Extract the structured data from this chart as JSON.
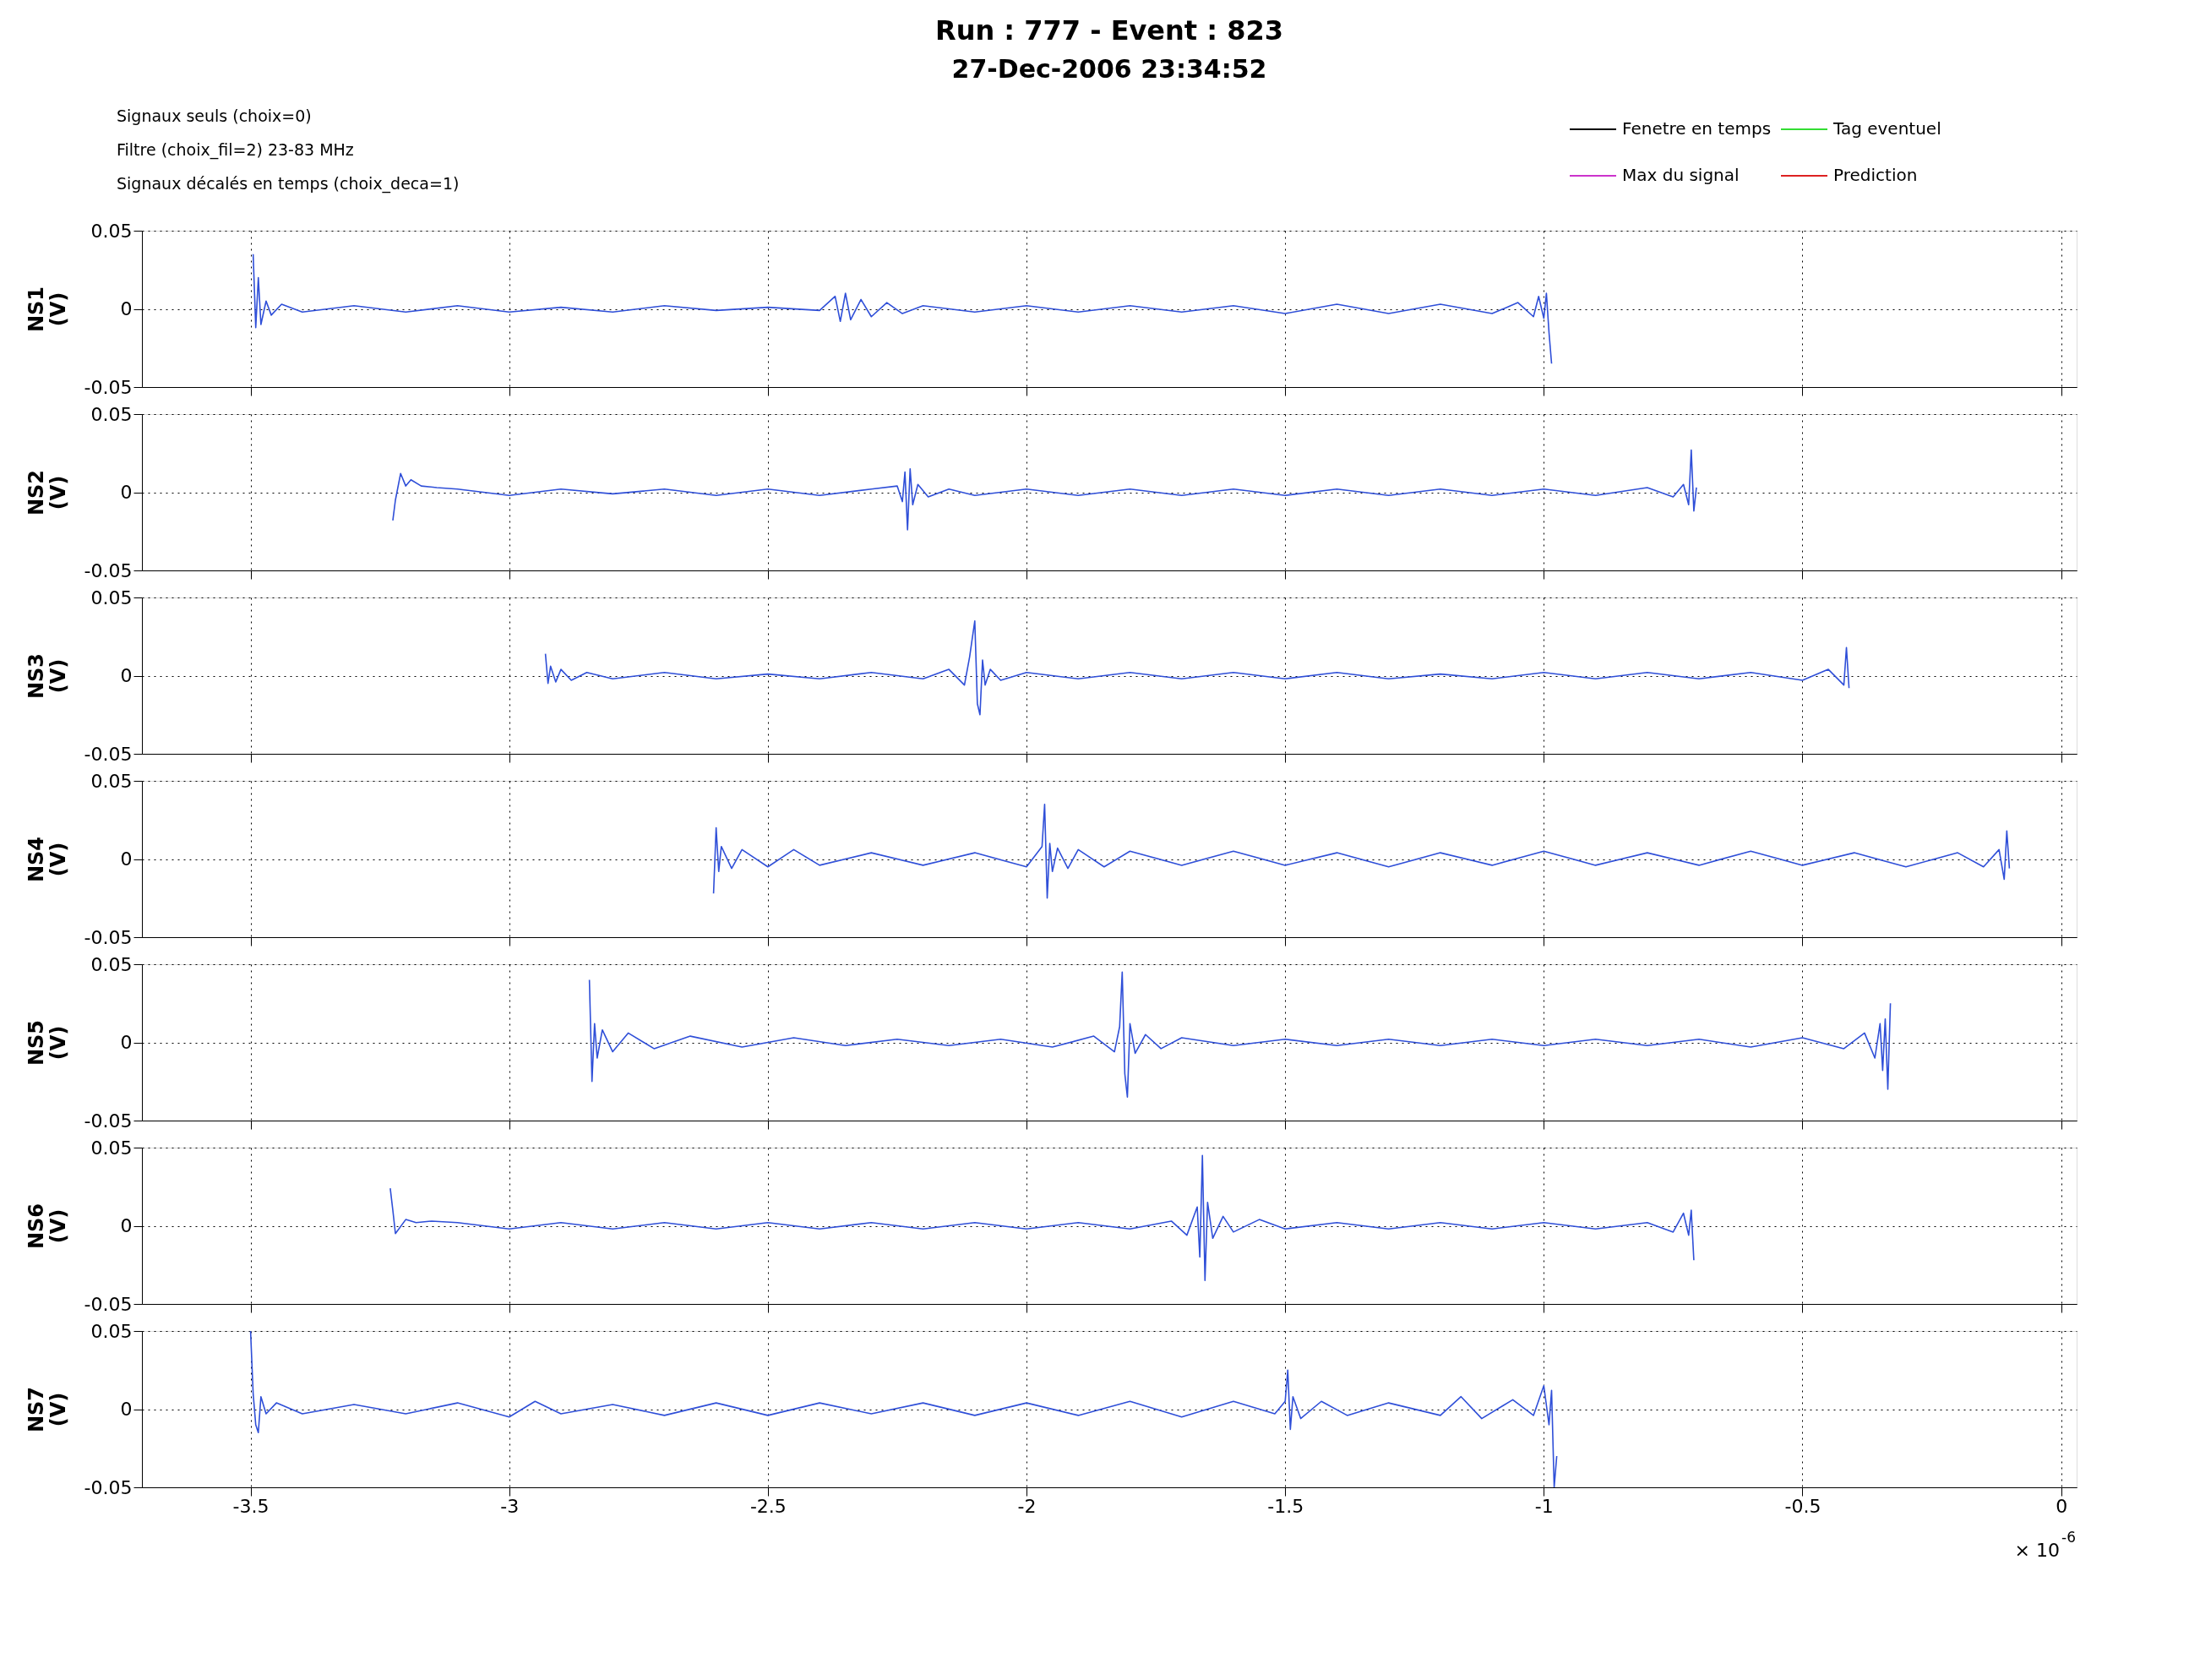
{
  "chart_data": [
    {
      "type": "line",
      "title": "Run : 777 - Event : 823",
      "subtitle": "27-Dec-2006 23:34:52",
      "ylabel": "NS1 (V)",
      "xlim": [
        -3.71,
        0.03
      ],
      "xticks": [
        -3.5,
        -3,
        -2.5,
        -2,
        -1.5,
        -1,
        -0.5,
        0
      ],
      "ylim": [
        -0.05,
        0.05
      ],
      "yticks": [
        -0.05,
        0,
        0.05
      ],
      "grid": true,
      "tick_labels": "y",
      "legend": "top right",
      "annotations": [
        "Signaux seuls (choix=0)",
        "Filtre (choix_fil=2) 23-83   MHz",
        "Signaux décalés en temps (choix_deca=1)"
      ],
      "series": [
        {
          "color": "#2f4fd8",
          "x": [
            -3.495,
            -3.49,
            -3.485,
            -3.48,
            -3.47,
            -3.46,
            -3.44,
            -3.4,
            -3.3,
            -3.2,
            -3.1,
            -3.0,
            -2.9,
            -2.8,
            -2.7,
            -2.6,
            -2.5,
            -2.4,
            -2.37,
            -2.36,
            -2.35,
            -2.34,
            -2.32,
            -2.3,
            -2.27,
            -2.24,
            -2.2,
            -2.1,
            -2.0,
            -1.9,
            -1.8,
            -1.7,
            -1.6,
            -1.5,
            -1.4,
            -1.3,
            -1.2,
            -1.1,
            -1.05,
            -1.02,
            -1.01,
            -1.0,
            -0.995,
            -0.99,
            -0.985
          ],
          "values": [
            0.035,
            -0.012,
            0.02,
            -0.01,
            0.005,
            -0.004,
            0.003,
            -0.002,
            0.002,
            -0.002,
            0.002,
            -0.002,
            0.001,
            -0.002,
            0.002,
            -0.001,
            0.001,
            -0.001,
            0.008,
            -0.008,
            0.01,
            -0.007,
            0.006,
            -0.005,
            0.004,
            -0.003,
            0.002,
            -0.002,
            0.002,
            -0.002,
            0.002,
            -0.002,
            0.002,
            -0.003,
            0.003,
            -0.003,
            0.003,
            -0.003,
            0.004,
            -0.005,
            0.008,
            -0.006,
            0.01,
            -0.015,
            -0.035
          ]
        },
        {
          "name": "Fenetre en temps",
          "color": "#000000"
        },
        {
          "name": "Tag eventuel",
          "color": "#33dd33"
        },
        {
          "name": "Max du signal",
          "color": "#cc33cc"
        },
        {
          "name": "Prediction",
          "color": "#dd2222"
        }
      ]
    },
    {
      "type": "line",
      "ylabel": "NS2 (V)",
      "xlim": [
        -3.71,
        0.03
      ],
      "xticks": [
        -3.5,
        -3,
        -2.5,
        -2,
        -1.5,
        -1,
        -0.5,
        0
      ],
      "ylim": [
        -0.05,
        0.05
      ],
      "yticks": [
        -0.05,
        0,
        0.05
      ],
      "grid": true,
      "tick_labels": "y",
      "series": [
        {
          "color": "#2f4fd8",
          "x": [
            -3.225,
            -3.22,
            -3.21,
            -3.2,
            -3.19,
            -3.17,
            -3.14,
            -3.1,
            -3.0,
            -2.9,
            -2.8,
            -2.7,
            -2.6,
            -2.5,
            -2.4,
            -2.3,
            -2.25,
            -2.24,
            -2.235,
            -2.23,
            -2.225,
            -2.22,
            -2.21,
            -2.19,
            -2.15,
            -2.1,
            -2.0,
            -1.9,
            -1.8,
            -1.7,
            -1.6,
            -1.5,
            -1.4,
            -1.3,
            -1.2,
            -1.1,
            -1.0,
            -0.9,
            -0.8,
            -0.75,
            -0.73,
            -0.72,
            -0.715,
            -0.71,
            -0.705
          ],
          "values": [
            -0.018,
            -0.005,
            0.012,
            0.004,
            0.008,
            0.004,
            0.003,
            0.002,
            -0.002,
            0.002,
            -0.001,
            0.002,
            -0.002,
            0.002,
            -0.002,
            0.002,
            0.004,
            -0.006,
            0.013,
            -0.024,
            0.015,
            -0.008,
            0.005,
            -0.003,
            0.002,
            -0.002,
            0.002,
            -0.002,
            0.002,
            -0.002,
            0.002,
            -0.002,
            0.002,
            -0.002,
            0.002,
            -0.002,
            0.002,
            -0.002,
            0.003,
            -0.003,
            0.005,
            -0.008,
            0.027,
            -0.012,
            0.003
          ]
        }
      ]
    },
    {
      "type": "line",
      "ylabel": "NS3 (V)",
      "xlim": [
        -3.71,
        0.03
      ],
      "xticks": [
        -3.5,
        -3,
        -2.5,
        -2,
        -1.5,
        -1,
        -0.5,
        0
      ],
      "ylim": [
        -0.05,
        0.05
      ],
      "yticks": [
        -0.05,
        0,
        0.05
      ],
      "grid": true,
      "tick_labels": "y",
      "series": [
        {
          "color": "#2f4fd8",
          "x": [
            -2.93,
            -2.925,
            -2.92,
            -2.91,
            -2.9,
            -2.88,
            -2.85,
            -2.8,
            -2.7,
            -2.6,
            -2.5,
            -2.4,
            -2.3,
            -2.2,
            -2.15,
            -2.12,
            -2.11,
            -2.1,
            -2.095,
            -2.09,
            -2.085,
            -2.08,
            -2.07,
            -2.05,
            -2.0,
            -1.9,
            -1.8,
            -1.7,
            -1.6,
            -1.5,
            -1.4,
            -1.3,
            -1.2,
            -1.1,
            -1.0,
            -0.9,
            -0.8,
            -0.7,
            -0.6,
            -0.5,
            -0.45,
            -0.42,
            -0.415,
            -0.41
          ],
          "values": [
            0.014,
            -0.005,
            0.006,
            -0.004,
            0.004,
            -0.003,
            0.002,
            -0.002,
            0.002,
            -0.002,
            0.001,
            -0.002,
            0.002,
            -0.002,
            0.004,
            -0.006,
            0.012,
            0.035,
            -0.018,
            -0.025,
            0.01,
            -0.006,
            0.004,
            -0.003,
            0.002,
            -0.002,
            0.002,
            -0.002,
            0.002,
            -0.002,
            0.002,
            -0.002,
            0.001,
            -0.002,
            0.002,
            -0.002,
            0.002,
            -0.002,
            0.002,
            -0.003,
            0.004,
            -0.006,
            0.018,
            -0.008
          ]
        }
      ]
    },
    {
      "type": "line",
      "ylabel": "NS4 (V)",
      "xlim": [
        -3.71,
        0.03
      ],
      "xticks": [
        -3.5,
        -3,
        -2.5,
        -2,
        -1.5,
        -1,
        -0.5,
        0
      ],
      "ylim": [
        -0.05,
        0.05
      ],
      "yticks": [
        -0.05,
        0,
        0.05
      ],
      "grid": true,
      "tick_labels": "y",
      "series": [
        {
          "color": "#2f4fd8",
          "x": [
            -2.605,
            -2.6,
            -2.595,
            -2.59,
            -2.57,
            -2.55,
            -2.5,
            -2.45,
            -2.4,
            -2.3,
            -2.2,
            -2.1,
            -2.0,
            -1.97,
            -1.965,
            -1.96,
            -1.955,
            -1.95,
            -1.94,
            -1.92,
            -1.9,
            -1.85,
            -1.8,
            -1.7,
            -1.6,
            -1.5,
            -1.4,
            -1.3,
            -1.2,
            -1.1,
            -1.0,
            -0.9,
            -0.8,
            -0.7,
            -0.6,
            -0.5,
            -0.4,
            -0.3,
            -0.2,
            -0.15,
            -0.12,
            -0.11,
            -0.105,
            -0.1
          ],
          "values": [
            -0.022,
            0.02,
            -0.008,
            0.008,
            -0.006,
            0.006,
            -0.005,
            0.006,
            -0.004,
            0.004,
            -0.004,
            0.004,
            -0.005,
            0.008,
            0.035,
            -0.025,
            0.01,
            -0.008,
            0.007,
            -0.006,
            0.006,
            -0.005,
            0.005,
            -0.004,
            0.005,
            -0.004,
            0.004,
            -0.005,
            0.004,
            -0.004,
            0.005,
            -0.004,
            0.004,
            -0.004,
            0.005,
            -0.004,
            0.004,
            -0.005,
            0.004,
            -0.005,
            0.006,
            -0.013,
            0.018,
            -0.006
          ]
        }
      ]
    },
    {
      "type": "line",
      "ylabel": "NS5 (V)",
      "xlim": [
        -3.71,
        0.03
      ],
      "xticks": [
        -3.5,
        -3,
        -2.5,
        -2,
        -1.5,
        -1,
        -0.5,
        0
      ],
      "ylim": [
        -0.05,
        0.05
      ],
      "yticks": [
        -0.05,
        0,
        0.05
      ],
      "grid": true,
      "tick_labels": "y",
      "series": [
        {
          "color": "#2f4fd8",
          "x": [
            -2.845,
            -2.84,
            -2.835,
            -2.83,
            -2.82,
            -2.8,
            -2.77,
            -2.72,
            -2.65,
            -2.55,
            -2.45,
            -2.35,
            -2.25,
            -2.15,
            -2.05,
            -1.95,
            -1.87,
            -1.83,
            -1.82,
            -1.815,
            -1.81,
            -1.805,
            -1.8,
            -1.79,
            -1.77,
            -1.74,
            -1.7,
            -1.6,
            -1.5,
            -1.4,
            -1.3,
            -1.2,
            -1.1,
            -1.0,
            -0.9,
            -0.8,
            -0.7,
            -0.6,
            -0.5,
            -0.42,
            -0.38,
            -0.36,
            -0.35,
            -0.345,
            -0.34,
            -0.335,
            -0.33
          ],
          "values": [
            0.04,
            -0.025,
            0.012,
            -0.01,
            0.008,
            -0.006,
            0.006,
            -0.004,
            0.004,
            -0.003,
            0.003,
            -0.002,
            0.002,
            -0.002,
            0.002,
            -0.003,
            0.004,
            -0.006,
            0.01,
            0.045,
            -0.02,
            -0.035,
            0.012,
            -0.007,
            0.005,
            -0.004,
            0.003,
            -0.002,
            0.002,
            -0.002,
            0.002,
            -0.002,
            0.002,
            -0.002,
            0.002,
            -0.002,
            0.002,
            -0.003,
            0.003,
            -0.004,
            0.006,
            -0.01,
            0.012,
            -0.018,
            0.015,
            -0.03,
            0.025
          ]
        }
      ]
    },
    {
      "type": "line",
      "ylabel": "NS6 (V)",
      "xlim": [
        -3.71,
        0.03
      ],
      "xticks": [
        -3.5,
        -3,
        -2.5,
        -2,
        -1.5,
        -1,
        -0.5,
        0
      ],
      "ylim": [
        -0.05,
        0.05
      ],
      "yticks": [
        -0.05,
        0,
        0.05
      ],
      "grid": true,
      "tick_labels": "y",
      "series": [
        {
          "color": "#2f4fd8",
          "x": [
            -3.23,
            -3.225,
            -3.22,
            -3.2,
            -3.18,
            -3.15,
            -3.1,
            -3.0,
            -2.9,
            -2.8,
            -2.7,
            -2.6,
            -2.5,
            -2.4,
            -2.3,
            -2.2,
            -2.1,
            -2.0,
            -1.9,
            -1.8,
            -1.72,
            -1.69,
            -1.67,
            -1.665,
            -1.66,
            -1.655,
            -1.65,
            -1.64,
            -1.62,
            -1.6,
            -1.55,
            -1.5,
            -1.4,
            -1.3,
            -1.2,
            -1.1,
            -1.0,
            -0.9,
            -0.8,
            -0.75,
            -0.73,
            -0.72,
            -0.715,
            -0.71
          ],
          "values": [
            0.024,
            0.01,
            -0.005,
            0.004,
            0.002,
            0.003,
            0.002,
            -0.002,
            0.002,
            -0.002,
            0.002,
            -0.002,
            0.002,
            -0.002,
            0.002,
            -0.002,
            0.002,
            -0.002,
            0.002,
            -0.002,
            0.003,
            -0.006,
            0.012,
            -0.02,
            0.045,
            -0.035,
            0.015,
            -0.008,
            0.006,
            -0.004,
            0.004,
            -0.002,
            0.002,
            -0.002,
            0.002,
            -0.002,
            0.002,
            -0.002,
            0.002,
            -0.004,
            0.008,
            -0.006,
            0.01,
            -0.022
          ]
        }
      ]
    },
    {
      "type": "line",
      "ylabel": "NS7 (V)",
      "xlim": [
        -3.71,
        0.03
      ],
      "xticks": [
        -3.5,
        -3,
        -2.5,
        -2,
        -1.5,
        -1,
        -0.5,
        0
      ],
      "ylim": [
        -0.05,
        0.05
      ],
      "yticks": [
        -0.05,
        0,
        0.05
      ],
      "grid": true,
      "annotations": [
        "× 10$^{-6}$"
      ],
      "series": [
        {
          "color": "#2f4fd8",
          "x": [
            -3.5,
            -3.495,
            -3.49,
            -3.485,
            -3.48,
            -3.47,
            -3.45,
            -3.4,
            -3.3,
            -3.2,
            -3.1,
            -3.0,
            -2.95,
            -2.9,
            -2.8,
            -2.7,
            -2.6,
            -2.5,
            -2.4,
            -2.3,
            -2.2,
            -2.1,
            -2.0,
            -1.9,
            -1.8,
            -1.7,
            -1.6,
            -1.52,
            -1.5,
            -1.495,
            -1.49,
            -1.485,
            -1.47,
            -1.43,
            -1.38,
            -1.3,
            -1.2,
            -1.16,
            -1.12,
            -1.06,
            -1.02,
            -1.0,
            -0.99,
            -0.985,
            -0.98,
            -0.975
          ],
          "values": [
            0.05,
            0.01,
            -0.01,
            -0.015,
            0.008,
            -0.003,
            0.004,
            -0.003,
            0.003,
            -0.003,
            0.004,
            -0.005,
            0.005,
            -0.003,
            0.003,
            -0.004,
            0.004,
            -0.004,
            0.004,
            -0.003,
            0.004,
            -0.004,
            0.004,
            -0.004,
            0.005,
            -0.005,
            0.005,
            -0.003,
            0.005,
            0.025,
            -0.013,
            0.008,
            -0.006,
            0.005,
            -0.004,
            0.004,
            -0.004,
            0.008,
            -0.006,
            0.006,
            -0.004,
            0.015,
            -0.01,
            0.012,
            -0.05,
            -0.03
          ]
        }
      ]
    }
  ]
}
